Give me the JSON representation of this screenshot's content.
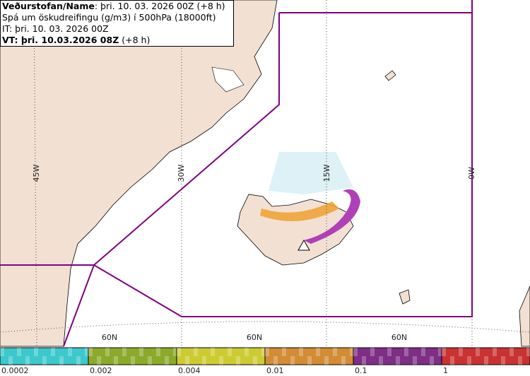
{
  "header": {
    "line1_label": "Veðurstofan/Name",
    "line1_value": ": þri. 10. 03. 2026 00Z (+8 h)",
    "line2": "Spá um öskudreifingu (g/m3) í 500hPa (18000ft)",
    "line3": "IT: þri. 10. 03. 2026 00Z",
    "line4_label": "VT: þri. 10.03.2026 08Z",
    "line4_value": " (+8 h)"
  },
  "map": {
    "lon_labels": [
      "45W",
      "30W",
      "15W",
      "0W"
    ],
    "lat_labels": [
      "60N",
      "60N",
      "60N"
    ]
  },
  "legend": {
    "labels": [
      "0.0002",
      "0.002",
      "0.004",
      "0.01",
      "0.1",
      "1"
    ],
    "colors": [
      "#3cc8cc",
      "#8caa2a",
      "#cccc32",
      "#d28c34",
      "#7e2e84",
      "#c83232"
    ]
  }
}
